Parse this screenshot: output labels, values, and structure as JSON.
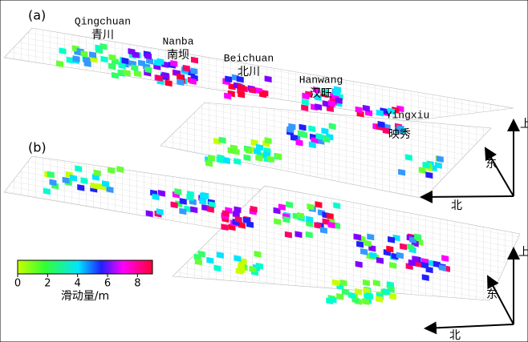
{
  "panels": [
    {
      "label": "(a)",
      "places": [
        {
          "en": "Qingchuan",
          "zh": "青川"
        },
        {
          "en": "Nanba",
          "zh": "南坝"
        },
        {
          "en": "Beichuan",
          "zh": "北川"
        },
        {
          "en": "Hanwang",
          "zh": "汉旺"
        },
        {
          "en": "Yingxiu",
          "zh": "映秀"
        }
      ],
      "compass": {
        "up": "上",
        "east": "东",
        "north": "北"
      }
    },
    {
      "label": "(b)",
      "compass": {
        "up": "上",
        "east": "东",
        "north": "北"
      }
    }
  ],
  "colorbar": {
    "lim": [
      0,
      9
    ],
    "ticks": [
      0,
      2,
      4,
      6,
      8
    ],
    "label": "滑动量/m"
  }
}
